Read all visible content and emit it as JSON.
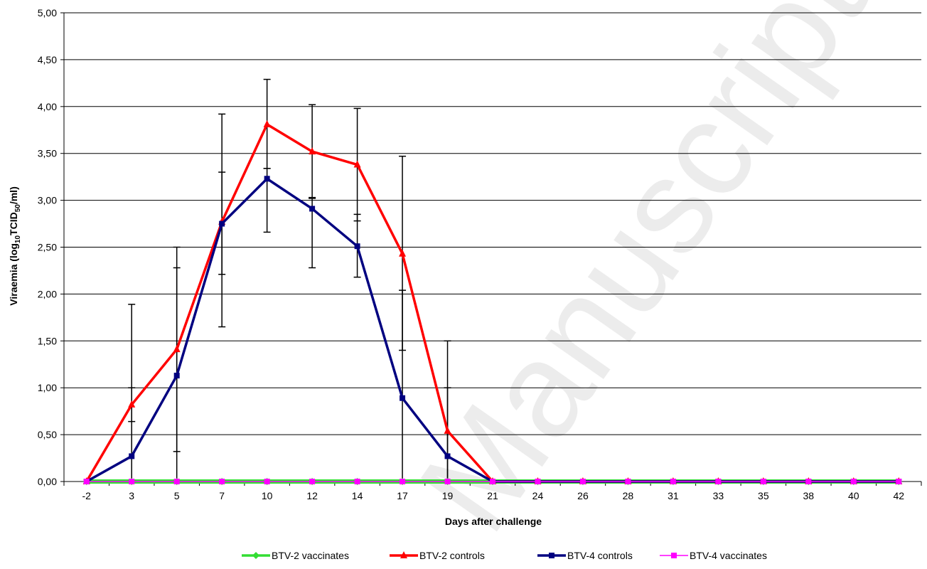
{
  "chart_data": {
    "type": "line",
    "title": "",
    "xlabel": "Days after challenge",
    "ylabel": "Viraemia (log10TCID50/ml)",
    "ylabel_parts": {
      "main": "Viraemia (log",
      "sub1": "10",
      "mid": "TCID",
      "sub2": "50",
      "end": "/ml)"
    },
    "watermark": "Manuscript",
    "categories": [
      "-2",
      "3",
      "5",
      "7",
      "10",
      "12",
      "14",
      "17",
      "19",
      "21",
      "24",
      "26",
      "28",
      "31",
      "33",
      "35",
      "38",
      "40",
      "42"
    ],
    "ylim": [
      0,
      5
    ],
    "yticks": [
      "0,00",
      "0,50",
      "1,00",
      "1,50",
      "2,00",
      "2,50",
      "3,00",
      "3,50",
      "4,00",
      "4,50",
      "5,00"
    ],
    "grid": true,
    "legend_position": "bottom",
    "series": [
      {
        "name": "BTV-2 vaccinates",
        "color": "#33dd33",
        "marker": "diamond",
        "values": [
          0,
          0,
          0,
          0,
          0,
          0,
          0,
          0,
          0,
          0,
          0,
          0,
          0,
          0,
          0,
          0,
          0,
          0,
          0
        ]
      },
      {
        "name": "BTV-2 controls",
        "color": "#ff0000",
        "marker": "triangle",
        "values": [
          0,
          0.82,
          1.41,
          2.77,
          3.81,
          3.52,
          3.38,
          2.43,
          0.54,
          0,
          0,
          0,
          0,
          0,
          0,
          0,
          0,
          0,
          0
        ],
        "error_upper": [
          0,
          1.0,
          2.5,
          3.92,
          4.29,
          4.02,
          3.98,
          3.47,
          1.5,
          0,
          0,
          0,
          0,
          0,
          0,
          0,
          0,
          0,
          0
        ],
        "error_lower": [
          0,
          0.64,
          0.32,
          1.65,
          3.34,
          3.03,
          2.78,
          1.4,
          0,
          0,
          0,
          0,
          0,
          0,
          0,
          0,
          0,
          0,
          0
        ]
      },
      {
        "name": "BTV-4 controls",
        "color": "#000080",
        "marker": "square",
        "values": [
          0,
          0.27,
          1.13,
          2.75,
          3.23,
          2.91,
          2.51,
          0.89,
          0.27,
          0,
          0,
          0,
          0,
          0,
          0,
          0,
          0,
          0,
          0
        ],
        "error_upper": [
          0,
          1.89,
          2.28,
          3.3,
          3.34,
          3.02,
          2.85,
          2.04,
          1.0,
          0,
          0,
          0,
          0,
          0,
          0,
          0,
          0,
          0,
          0
        ],
        "error_lower": [
          0,
          0,
          0,
          2.21,
          2.66,
          2.28,
          2.18,
          0,
          0,
          0,
          0,
          0,
          0,
          0,
          0,
          0,
          0,
          0,
          0
        ]
      },
      {
        "name": "BTV-4 vaccinates",
        "color": "#ff00ff",
        "marker": "square",
        "values": [
          0,
          0,
          0,
          0,
          0,
          0,
          0,
          0,
          0,
          0,
          0,
          0,
          0,
          0,
          0,
          0,
          0,
          0,
          0
        ]
      }
    ]
  }
}
